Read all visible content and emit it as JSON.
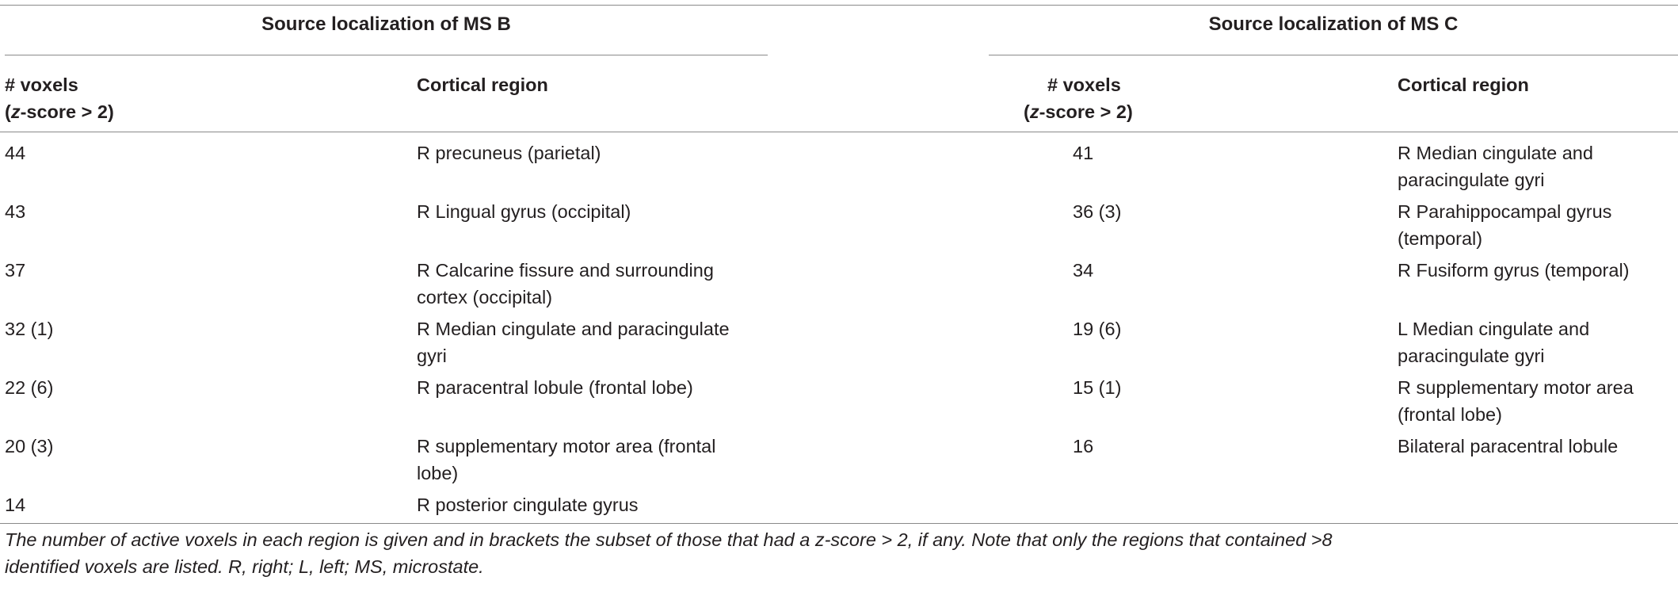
{
  "table": {
    "groups": [
      {
        "title": "Source localization of MS B"
      },
      {
        "title": "Source localization of MS C"
      }
    ],
    "headers": {
      "voxels_line1": "# voxels",
      "voxels_line2_italic": "z",
      "voxels_line2_rest": "-score > 2)",
      "voxels_line2_open": "(",
      "region": "Cortical region"
    },
    "ms_b_rows": [
      {
        "voxels": "44",
        "region": [
          "R precuneus (parietal)"
        ]
      },
      {
        "voxels": "43",
        "region": [
          "R Lingual gyrus (occipital)"
        ]
      },
      {
        "voxels": "37",
        "region": [
          "R Calcarine fissure and surrounding",
          "cortex (occipital)"
        ]
      },
      {
        "voxels": "32 (1)",
        "region": [
          "R Median cingulate and paracingulate",
          "gyri"
        ]
      },
      {
        "voxels": "22 (6)",
        "region": [
          "R paracentral lobule (frontal lobe)"
        ]
      },
      {
        "voxels": "20 (3)",
        "region": [
          "R supplementary motor area (frontal",
          "lobe)"
        ]
      },
      {
        "voxels": "14",
        "region": [
          "R posterior cingulate gyrus"
        ]
      }
    ],
    "ms_c_rows": [
      {
        "voxels": "41",
        "region": [
          "R Median cingulate and",
          "paracingulate gyri"
        ]
      },
      {
        "voxels": "36 (3)",
        "region": [
          "R Parahippocampal gyrus",
          "(temporal)"
        ]
      },
      {
        "voxels": "34",
        "region": [
          "R Fusiform gyrus (temporal)"
        ]
      },
      {
        "voxels": "19 (6)",
        "region": [
          "L Median cingulate and",
          "paracingulate gyri"
        ]
      },
      {
        "voxels": "15 (1)",
        "region": [
          "R supplementary motor area",
          "(frontal lobe)"
        ]
      },
      {
        "voxels": "16",
        "region": [
          "Bilateral paracentral lobule"
        ]
      }
    ]
  },
  "caption": {
    "line1": "The number of active voxels in each region is given and in brackets the subset of those that had a z-score > 2, if any. Note that only the regions that contained >8",
    "line2": "identified voxels are listed. R, right; L, left; MS, microstate."
  }
}
